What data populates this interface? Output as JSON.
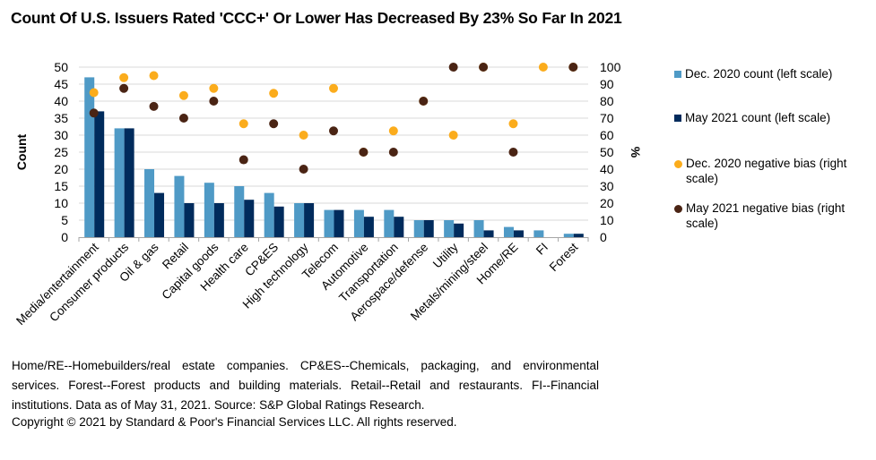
{
  "title": "Count Of U.S. Issuers Rated 'CCC+' Or Lower Has Decreased By 23% So Far In 2021",
  "footnote": "Home/RE--Homebuilders/real estate companies. CP&ES--Chemicals, packaging, and environmental services. Forest--Forest products and building materials. Retail--Retail and restaurants. FI--Financial institutions. Data as of May 31, 2021. Source: S&P Global Ratings Research.",
  "copyright": "Copyright © 2021 by Standard & Poor's Financial Services LLC. All rights reserved.",
  "colors": {
    "dec_count": "#4f9ac6",
    "may_count": "#002b5c",
    "dec_bias": "#fbac1c",
    "may_bias": "#4a2414",
    "grid": "#d9d9d9",
    "axis": "#a6a6a6"
  },
  "legend": [
    {
      "label": "Dec. 2020 count (left scale)",
      "marker": "square",
      "series": "dec_count"
    },
    {
      "label": "May 2021 count (left scale)",
      "marker": "square",
      "series": "may_count"
    },
    {
      "label": "Dec. 2020 negative bias (right scale)",
      "marker": "circle",
      "series": "dec_bias"
    },
    {
      "label": "May 2021 negative bias (right scale)",
      "marker": "circle",
      "series": "may_bias"
    }
  ],
  "chart_data": {
    "type": "bar",
    "title": "Count Of U.S. Issuers Rated 'CCC+' Or Lower Has Decreased By 23% So Far In 2021",
    "xlabel": "",
    "ylabel": "Count",
    "y2label": "%",
    "ylim": [
      0,
      50
    ],
    "y2lim": [
      0,
      100
    ],
    "yticks": [
      0,
      5,
      10,
      15,
      20,
      25,
      30,
      35,
      40,
      45,
      50
    ],
    "y2ticks": [
      0,
      10,
      20,
      30,
      40,
      50,
      60,
      70,
      80,
      90,
      100
    ],
    "grid": true,
    "legend_position": "right",
    "categories": [
      "Media/entertainment",
      "Consumer products",
      "Oil & gas",
      "Retail",
      "Capital goods",
      "Health care",
      "CP&ES",
      "High technology",
      "Telecom",
      "Automotive",
      "Transportation",
      "Aerospace/defense",
      "Utility",
      "Metals/mining/steel",
      "Home/RE",
      "FI",
      "Forest"
    ],
    "series": [
      {
        "name": "Dec. 2020 count (left scale)",
        "type": "bar",
        "axis": "left",
        "key": "dec_count",
        "values": [
          47,
          32,
          20,
          18,
          16,
          15,
          13,
          10,
          8,
          8,
          8,
          5,
          5,
          5,
          3,
          2,
          1
        ]
      },
      {
        "name": "May 2021 count (left scale)",
        "type": "bar",
        "axis": "left",
        "key": "may_count",
        "values": [
          37,
          32,
          13,
          10,
          10,
          11,
          9,
          10,
          8,
          6,
          6,
          5,
          4,
          2,
          2,
          0,
          1
        ]
      },
      {
        "name": "Dec. 2020 negative bias (right scale)",
        "type": "scatter",
        "axis": "right",
        "key": "dec_bias",
        "values": [
          85,
          93.8,
          95,
          83.3,
          87.5,
          66.7,
          84.6,
          60,
          87.5,
          50,
          62.5,
          80,
          60,
          100,
          66.7,
          100,
          100
        ]
      },
      {
        "name": "May 2021 negative bias (right scale)",
        "type": "scatter",
        "axis": "right",
        "key": "may_bias",
        "values": [
          73,
          87.5,
          76.9,
          70,
          80,
          45.5,
          66.7,
          40,
          62.5,
          50,
          50,
          80,
          100,
          100,
          50,
          null,
          100
        ]
      }
    ]
  }
}
